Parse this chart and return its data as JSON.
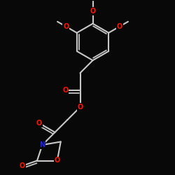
{
  "bg": "#080808",
  "bc": "#c8c8c8",
  "Oc": "#ff1800",
  "Nc": "#2222ee",
  "lw": 1.5,
  "figsize": [
    2.5,
    2.5
  ],
  "dpi": 100,
  "xlim": [
    0,
    10
  ],
  "ylim": [
    0,
    10
  ]
}
